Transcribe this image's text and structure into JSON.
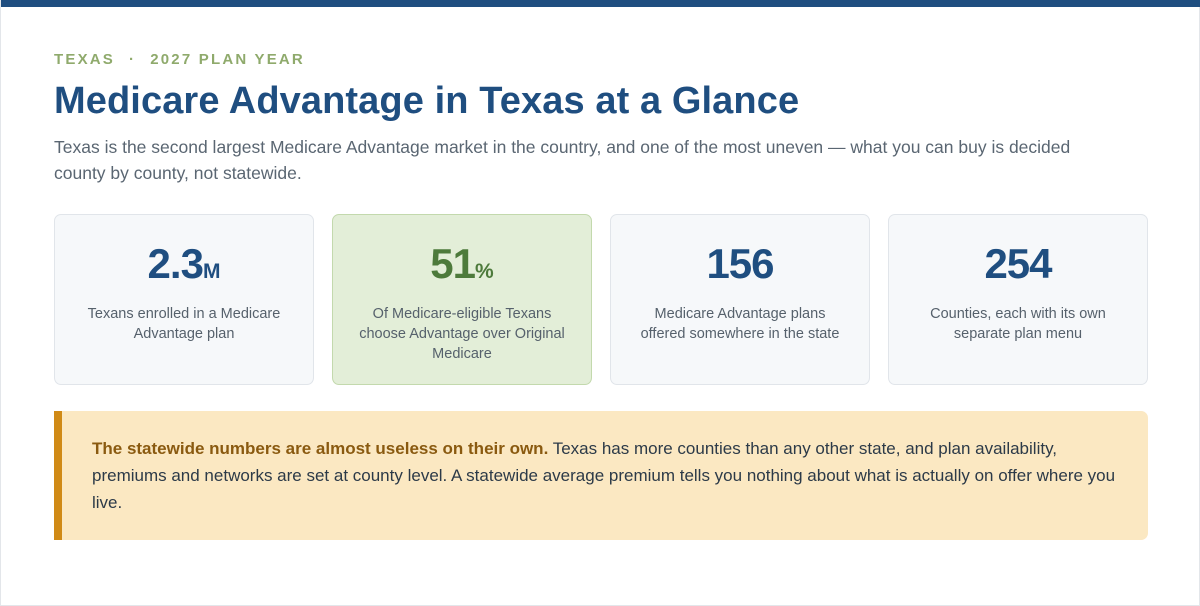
{
  "eyebrow": {
    "state": "TEXAS",
    "separator": "·",
    "year": "2027 PLAN YEAR"
  },
  "title": "Medicare Advantage in Texas at a Glance",
  "lead": "Texas is the second largest Medicare Advantage market in the country, and one of the most uneven — what you can buy is decided county by county, not statewide.",
  "stats": [
    {
      "value": "2.3",
      "unit": "M",
      "label": "Texans enrolled in a Medicare Advantage plan"
    },
    {
      "value": "51",
      "unit": "%",
      "label": "Of Medicare-eligible Texans choose Advantage over Original Medicare"
    },
    {
      "value": "156",
      "unit": "",
      "label": "Medicare Advantage plans offered somewhere in the state"
    },
    {
      "value": "254",
      "unit": "",
      "label": "Counties, each with its own separate plan menu"
    }
  ],
  "callout": {
    "strong": "The statewide numbers are almost useless on their own.",
    "text": " Texas has more counties than any other state, and plan availability, premiums and networks are set at county level. A statewide average premium tells you nothing about what is actually on offer where you live."
  },
  "colors": {
    "brand": "#1f4e80",
    "accent_green": "#4d7a3b",
    "eyebrow": "#8faa6c",
    "callout_border": "#d08a16",
    "callout_bg": "#fbe8c2"
  }
}
